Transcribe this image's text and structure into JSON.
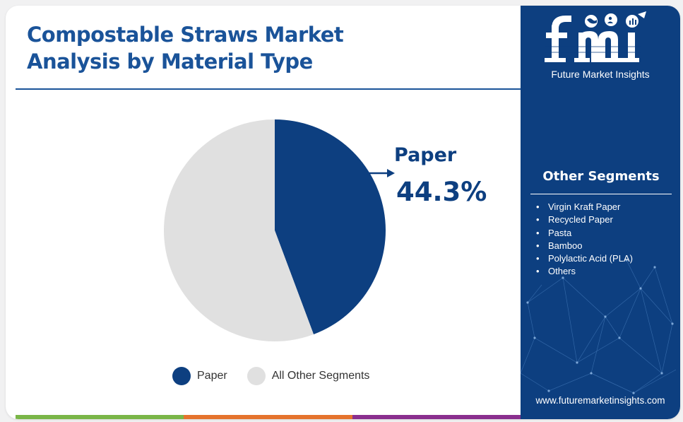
{
  "header": {
    "title_line1": "Compostable Straws Market",
    "title_line2": "Analysis by Material Type"
  },
  "chart_data": {
    "type": "pie",
    "slices": [
      {
        "label": "Paper",
        "value": 44.3,
        "color": "#0d3f80"
      },
      {
        "label": "All Other Segments",
        "value": 55.7,
        "color": "#e0e0e0"
      }
    ],
    "callout": {
      "label": "Paper",
      "value_text": "44.3%"
    },
    "legend_placement": "bottom"
  },
  "legend": {
    "items": [
      {
        "label": "Paper",
        "color": "#0d3f80"
      },
      {
        "label": "All Other Segments",
        "color": "#e0e0e0"
      }
    ]
  },
  "sidebar": {
    "logo_text": "fmi",
    "logo_subtitle": "Future Market Insights",
    "segments_title": "Other Segments",
    "segments": [
      "Virgin Kraft Paper",
      "Recycled Paper",
      "Pasta",
      "Bamboo",
      "Polylactic Acid (PLA)",
      "Others"
    ],
    "bullet": "•",
    "url": "www.futuremarketinsights.com"
  },
  "colors": {
    "title": "#1a5399",
    "sidebar_bg": "#0d3f80",
    "bottom_bar": [
      "#7ab648",
      "#e5732d",
      "#8a2f8e"
    ]
  }
}
